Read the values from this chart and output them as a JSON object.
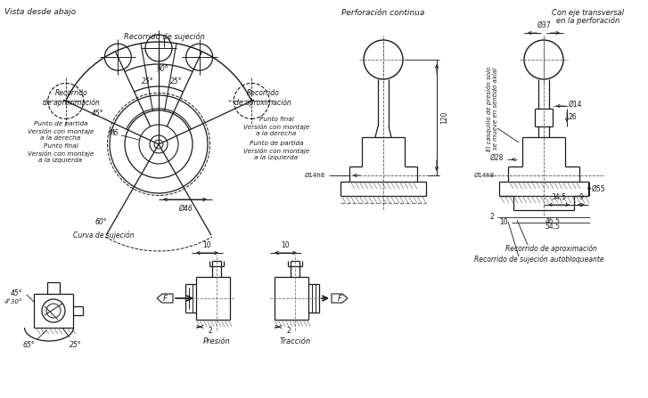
{
  "bg_color": "#ffffff",
  "lc": "#1a1a1a",
  "title_top_left": "Vista desde abajo",
  "title_center_top": "Perforación continua",
  "title_right_top1": "Con eje transversal",
  "title_right_top2": "en la perforación",
  "label_recorrido_sujec": "Recorrido de sujeción",
  "label_recorrido_aprox_left": "Recorrido\nde aproximación",
  "label_recorrido_aprox_right": "Recorrido\nde aproximación",
  "label_punto_partida_der": "Punto de partida\nVersión con montaje\na la derecha",
  "label_punto_final_der": "Punto final\nVersión con montaje\na la derecha",
  "label_punto_final_izq": "Punto final\nVersión con montaje\na la izquierda",
  "label_punto_partida_izq": "Punto de partida\nVersión con montaje\na la izquierda",
  "label_curva": "Curva de sujeción",
  "label_presion": "Presión",
  "label_traccion": "Tracción",
  "label_recorrido_aprox2": "Recorrido de aproximación",
  "label_recorrido_sujec_auto": "Recorrido de sujeción autobloqueante",
  "label_casquillo": "El casquillo de presión solo\nse mueve en sentido axial",
  "ang_25L": "25°",
  "ang_25R": "25°",
  "ang_90": "90°",
  "ang_45": "45°",
  "ang_60": "60°",
  "ang_65bot": "65°",
  "ang_25bot": "25°",
  "ang_45bot": "45°",
  "ang_430bot": "4°30°",
  "dim_M6": "M6",
  "dim_D46": "Ø46",
  "dim_D14h8_left": "Ø14h8",
  "dim_D14h8_right": "Ø14h8",
  "dim_120": "120",
  "dim_37": "Ø37",
  "dim_14": "Ø14",
  "dim_26": "26",
  "dim_28": "Ø28",
  "dim_55": "Ø55",
  "dim_34_5": "34,5",
  "dim_9": "9",
  "dim_2a": "2",
  "dim_10a": "10",
  "dim_46_5": "46,5",
  "dim_54_5": "54,5",
  "dim_10b": "10",
  "dim_2b": "2",
  "dim_10c": "10",
  "dim_2c": "2",
  "dim_F1": "F",
  "dim_F2": "F"
}
